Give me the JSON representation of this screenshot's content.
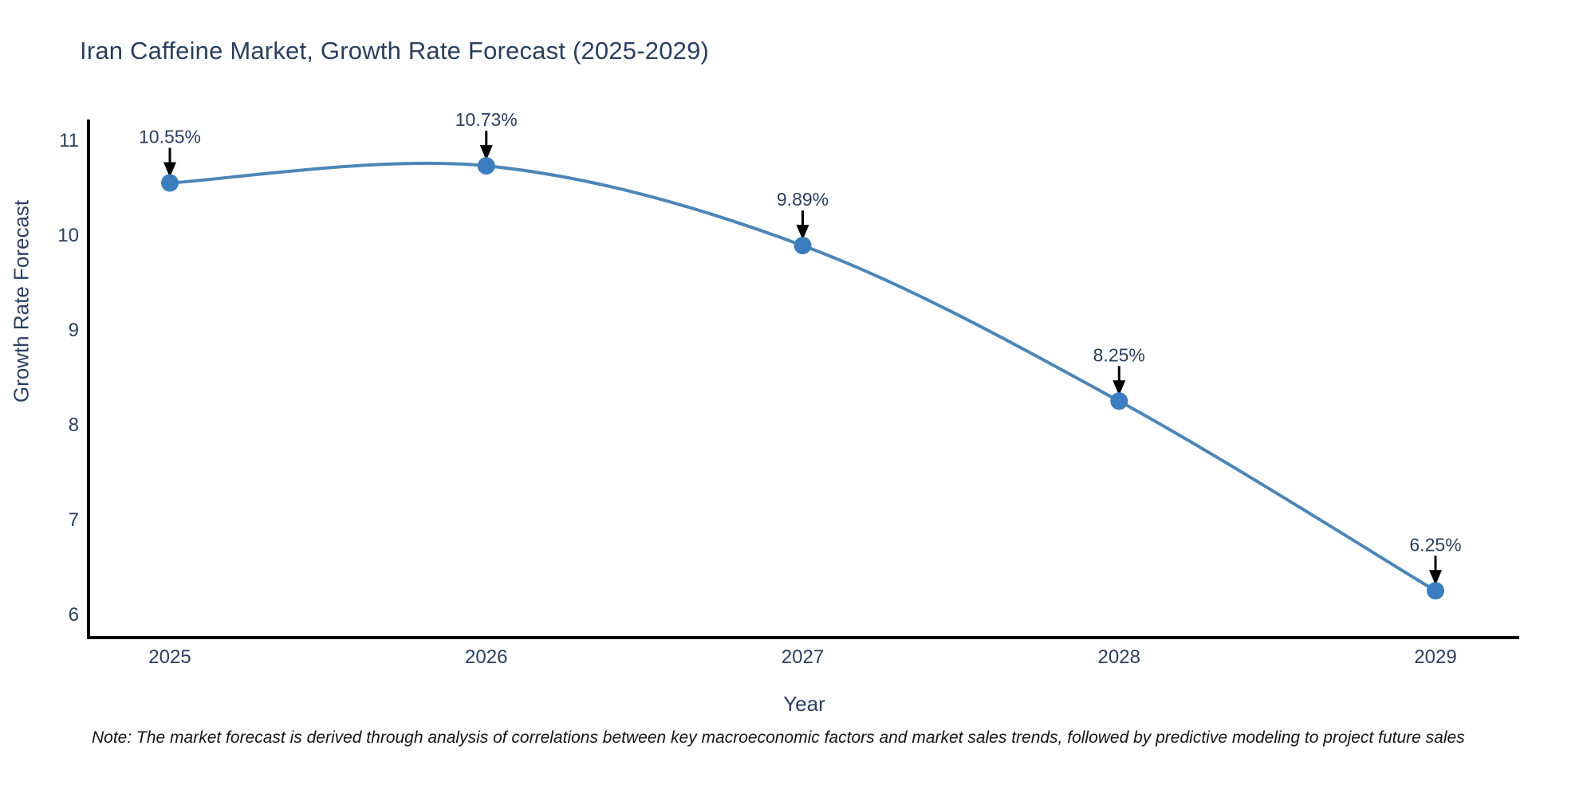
{
  "title": "Iran Caffeine Market, Growth Rate Forecast (2025-2029)",
  "footnote": "Note: The market forecast is derived through analysis of correlations between key macroeconomic factors and market sales trends, followed by predictive modeling to project future sales",
  "chart_data": {
    "type": "line",
    "title": "Iran Caffeine Market, Growth Rate Forecast (2025-2029)",
    "xlabel": "Year",
    "ylabel": "Growth Rate Forecast",
    "x": [
      2025,
      2026,
      2027,
      2028,
      2029
    ],
    "series": [
      {
        "name": "Growth Rate Forecast",
        "values": [
          10.55,
          10.73,
          9.89,
          8.25,
          6.25
        ]
      }
    ],
    "point_labels": [
      "10.55%",
      "10.73%",
      "9.89%",
      "8.25%",
      "6.25%"
    ],
    "x_ticks": [
      "2025",
      "2026",
      "2027",
      "2028",
      "2029"
    ],
    "y_ticks": [
      6,
      7,
      8,
      9,
      10,
      11
    ],
    "ylim": [
      5.76,
      11.22
    ],
    "xlim": [
      2024.74,
      2029.26
    ],
    "line_shape": "spline",
    "grid": false,
    "legend_position": "none",
    "annotations_have_arrows": true,
    "colors": {
      "line": "#4d86b6",
      "marker": "#3a7ebf",
      "axis_line": "#000000",
      "title_text": "#2a3f5f",
      "axis_title_text": "#2a3f5f",
      "tick_text": "#2a3f5f",
      "annotation_text": "#2a3f5f",
      "arrow": "#000000",
      "background": "#ffffff"
    }
  }
}
